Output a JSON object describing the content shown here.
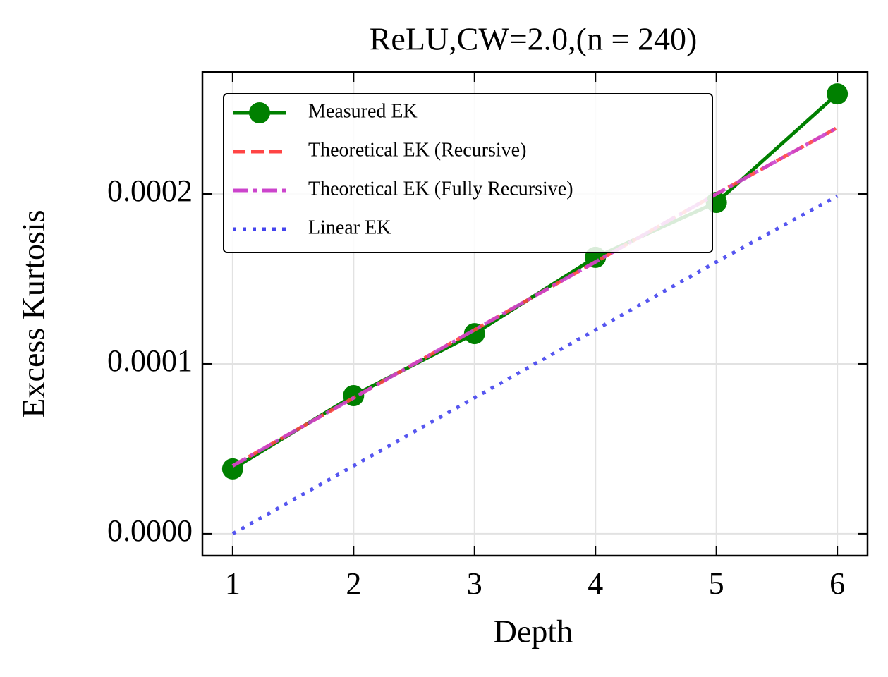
{
  "chart_data": {
    "type": "line",
    "title": "ReLU,CW=2.0,(n = 240)",
    "xlabel": "Depth",
    "ylabel": "Excess Kurtosis",
    "x": [
      1,
      2,
      3,
      4,
      5,
      6
    ],
    "series": [
      {
        "name": "Measured EK",
        "color": "#008000",
        "linestyle": "solid",
        "marker": "o",
        "values": [
          3.82e-05,
          8.13e-05,
          0.0001178,
          0.0001627,
          0.000195,
          0.0002589
        ]
      },
      {
        "name": "Theoretical EK (Recursive)",
        "color": "#ff4444",
        "linestyle": "dashed",
        "values": [
          4e-05,
          8e-05,
          0.00012,
          0.00016,
          0.0002,
          0.000239
        ]
      },
      {
        "name": "Theoretical EK (Fully Recursive)",
        "color": "#cc44cc",
        "linestyle": "dashdot",
        "values": [
          4e-05,
          8e-05,
          0.00012,
          0.00016,
          0.0002,
          0.000239
        ]
      },
      {
        "name": "Linear EK",
        "color": "#4444ee",
        "linestyle": "dotted",
        "values": [
          0,
          4e-05,
          8e-05,
          0.00012,
          0.00016,
          0.0001988
        ]
      }
    ],
    "xlim": [
      0.75,
      6.25
    ],
    "xticks": [
      1,
      2,
      3,
      4,
      5,
      6
    ],
    "ylim": [
      -1.29e-05,
      0.0002718
    ],
    "yticks": [
      {
        "value": 0,
        "label": "0.0000"
      },
      {
        "value": 0.0001,
        "label": "0.0001"
      },
      {
        "value": 0.0002,
        "label": "0.0002"
      }
    ],
    "grid": true,
    "legend": "upper left"
  }
}
